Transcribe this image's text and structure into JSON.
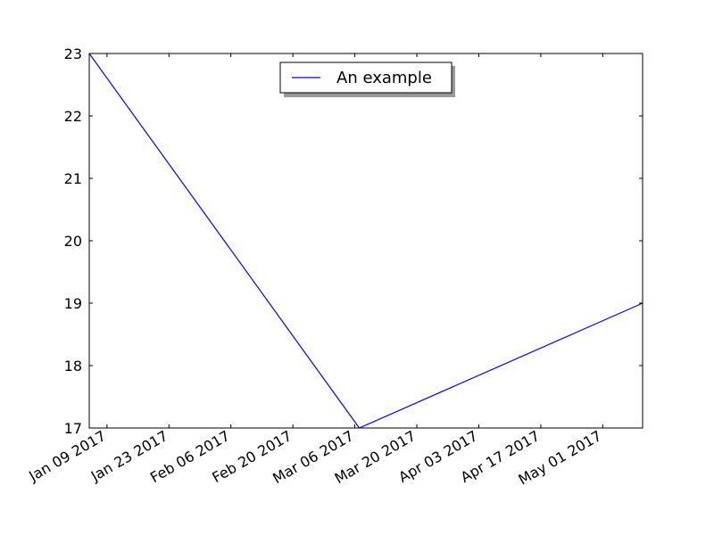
{
  "chart_data": {
    "type": "line",
    "title": "",
    "xlabel": "",
    "ylabel": "",
    "x_scale": "date",
    "xlim": [
      "2017-01-05",
      "2017-05-10"
    ],
    "ylim": [
      17,
      23
    ],
    "x_ticks": [
      {
        "date": "2017-01-09",
        "label": "Jan 09 2017"
      },
      {
        "date": "2017-01-23",
        "label": "Jan 23 2017"
      },
      {
        "date": "2017-02-06",
        "label": "Feb 06 2017"
      },
      {
        "date": "2017-02-20",
        "label": "Feb 20 2017"
      },
      {
        "date": "2017-03-06",
        "label": "Mar 06 2017"
      },
      {
        "date": "2017-03-20",
        "label": "Mar 20 2017"
      },
      {
        "date": "2017-04-03",
        "label": "Apr 03 2017"
      },
      {
        "date": "2017-04-17",
        "label": "Apr 17 2017"
      },
      {
        "date": "2017-05-01",
        "label": "May 01 2017"
      }
    ],
    "y_ticks": [
      17,
      18,
      19,
      20,
      21,
      22,
      23
    ],
    "series": [
      {
        "name": "An example",
        "color": "#0000ff",
        "x": [
          "2017-01-05",
          "2017-03-07",
          "2017-05-10"
        ],
        "y": [
          23,
          17,
          19
        ]
      }
    ],
    "legend": {
      "position": "upper-center",
      "shadow": true
    },
    "grid": false
  }
}
